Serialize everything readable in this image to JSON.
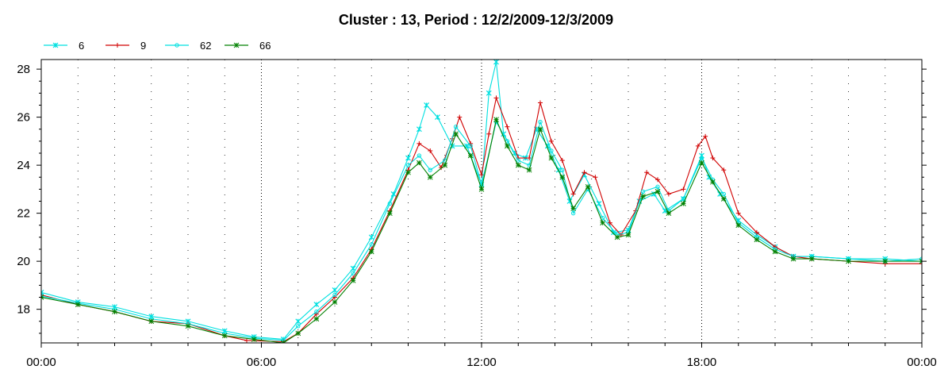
{
  "chart_data": {
    "type": "line",
    "title": "Cluster : 13, Period : 12/2/2009-12/3/2009",
    "xlabel": "",
    "ylabel": "",
    "xlim": [
      0,
      24
    ],
    "ylim": [
      16.6,
      28.4
    ],
    "x_ticks": [
      {
        "value": 0,
        "label": "00:00"
      },
      {
        "value": 6,
        "label": "06:00"
      },
      {
        "value": 12,
        "label": "12:00"
      },
      {
        "value": 18,
        "label": "18:00"
      },
      {
        "value": 24,
        "label": "00:00"
      }
    ],
    "y_ticks": [
      {
        "value": 18,
        "label": "18"
      },
      {
        "value": 20,
        "label": "20"
      },
      {
        "value": 22,
        "label": "22"
      },
      {
        "value": 24,
        "label": "24"
      },
      {
        "value": 26,
        "label": "26"
      },
      {
        "value": 28,
        "label": "28"
      }
    ],
    "grid": "dotted vertical every hour, y ticks on both sides",
    "legend_position": "top-left",
    "series": [
      {
        "name": "6",
        "color": "#00e0e0",
        "marker": "x",
        "points": [
          [
            0,
            18.7
          ],
          [
            1,
            18.3
          ],
          [
            2,
            18.1
          ],
          [
            3,
            17.7
          ],
          [
            4,
            17.5
          ],
          [
            5,
            17.1
          ],
          [
            5.8,
            16.85
          ],
          [
            6.6,
            16.75
          ],
          [
            7,
            17.5
          ],
          [
            7.5,
            18.2
          ],
          [
            8,
            18.8
          ],
          [
            8.5,
            19.7
          ],
          [
            9,
            21
          ],
          [
            9.6,
            22.8
          ],
          [
            10,
            24.3
          ],
          [
            10.3,
            25.5
          ],
          [
            10.5,
            26.5
          ],
          [
            10.8,
            26
          ],
          [
            11.2,
            24.8
          ],
          [
            11.6,
            24.8
          ],
          [
            12,
            23.2
          ],
          [
            12.2,
            27
          ],
          [
            12.4,
            28.3
          ],
          [
            12.6,
            25.3
          ],
          [
            12.9,
            24.5
          ],
          [
            13.2,
            24.3
          ],
          [
            13.5,
            25.5
          ],
          [
            13.8,
            24.8
          ],
          [
            14.1,
            23.8
          ],
          [
            14.4,
            22.5
          ],
          [
            14.8,
            23.6
          ],
          [
            15.2,
            22.4
          ],
          [
            15.6,
            21.2
          ],
          [
            16,
            21.3
          ],
          [
            16.3,
            22.5
          ],
          [
            16.7,
            22.8
          ],
          [
            17,
            22.1
          ],
          [
            17.5,
            22.6
          ],
          [
            18,
            24.4
          ],
          [
            18.2,
            23.5
          ],
          [
            18.5,
            22.8
          ],
          [
            19,
            21.7
          ],
          [
            19.5,
            21.1
          ],
          [
            20,
            20.6
          ],
          [
            20.5,
            20.2
          ],
          [
            21,
            20.2
          ],
          [
            22,
            20.1
          ],
          [
            23,
            20.1
          ],
          [
            24,
            20.0
          ]
        ]
      },
      {
        "name": "9",
        "color": "#d00000",
        "marker": "+",
        "points": [
          [
            0,
            18.6
          ],
          [
            1,
            18.2
          ],
          [
            2,
            17.9
          ],
          [
            3,
            17.5
          ],
          [
            4,
            17.4
          ],
          [
            5,
            16.9
          ],
          [
            5.6,
            16.7
          ],
          [
            6.6,
            16.65
          ],
          [
            7,
            17.0
          ],
          [
            7.5,
            17.8
          ],
          [
            8,
            18.5
          ],
          [
            8.5,
            19.3
          ],
          [
            9,
            20.5
          ],
          [
            9.5,
            22.1
          ],
          [
            10,
            23.8
          ],
          [
            10.3,
            24.9
          ],
          [
            10.6,
            24.6
          ],
          [
            10.9,
            23.9
          ],
          [
            11.2,
            25.1
          ],
          [
            11.4,
            26.0
          ],
          [
            11.7,
            24.9
          ],
          [
            12,
            23.6
          ],
          [
            12.2,
            25.3
          ],
          [
            12.4,
            26.8
          ],
          [
            12.7,
            25.6
          ],
          [
            13,
            24.3
          ],
          [
            13.3,
            24.3
          ],
          [
            13.6,
            26.6
          ],
          [
            13.9,
            25.0
          ],
          [
            14.2,
            24.2
          ],
          [
            14.5,
            22.8
          ],
          [
            14.8,
            23.7
          ],
          [
            15.1,
            23.5
          ],
          [
            15.5,
            21.6
          ],
          [
            15.8,
            21.1
          ],
          [
            16.2,
            22.1
          ],
          [
            16.5,
            23.7
          ],
          [
            16.8,
            23.4
          ],
          [
            17.1,
            22.8
          ],
          [
            17.5,
            23.0
          ],
          [
            17.9,
            24.8
          ],
          [
            18.1,
            25.2
          ],
          [
            18.3,
            24.3
          ],
          [
            18.6,
            23.8
          ],
          [
            19,
            22.0
          ],
          [
            19.5,
            21.2
          ],
          [
            20,
            20.6
          ],
          [
            20.5,
            20.2
          ],
          [
            21,
            20.1
          ],
          [
            22,
            20.0
          ],
          [
            23,
            19.9
          ],
          [
            24,
            19.9
          ]
        ]
      },
      {
        "name": "62",
        "color": "#00e0e0",
        "marker": "o",
        "points": [
          [
            0,
            18.55
          ],
          [
            1,
            18.25
          ],
          [
            2,
            18.0
          ],
          [
            3,
            17.6
          ],
          [
            4,
            17.4
          ],
          [
            5,
            17.0
          ],
          [
            5.8,
            16.8
          ],
          [
            6.6,
            16.7
          ],
          [
            7,
            17.3
          ],
          [
            7.5,
            17.9
          ],
          [
            8,
            18.6
          ],
          [
            8.5,
            19.5
          ],
          [
            9,
            20.7
          ],
          [
            9.5,
            22.4
          ],
          [
            10,
            24.0
          ],
          [
            10.3,
            24.4
          ],
          [
            10.6,
            23.8
          ],
          [
            11,
            24.2
          ],
          [
            11.3,
            25.6
          ],
          [
            11.7,
            24.8
          ],
          [
            12,
            23.2
          ],
          [
            12.4,
            25.8
          ],
          [
            12.7,
            25.0
          ],
          [
            13,
            24.2
          ],
          [
            13.3,
            24.0
          ],
          [
            13.6,
            25.8
          ],
          [
            13.9,
            24.6
          ],
          [
            14.2,
            23.8
          ],
          [
            14.5,
            22.0
          ],
          [
            14.9,
            23.0
          ],
          [
            15.3,
            21.8
          ],
          [
            15.7,
            21.1
          ],
          [
            16,
            21.2
          ],
          [
            16.4,
            22.9
          ],
          [
            16.8,
            23.1
          ],
          [
            17.1,
            22.1
          ],
          [
            17.5,
            22.6
          ],
          [
            18,
            24.3
          ],
          [
            18.3,
            23.4
          ],
          [
            18.6,
            22.8
          ],
          [
            19,
            21.6
          ],
          [
            19.5,
            21.0
          ],
          [
            20,
            20.5
          ],
          [
            20.5,
            20.2
          ],
          [
            21,
            20.2
          ],
          [
            22,
            20.1
          ],
          [
            23,
            20.0
          ],
          [
            24,
            20.1
          ]
        ]
      },
      {
        "name": "66",
        "color": "#008000",
        "marker": "*",
        "points": [
          [
            0,
            18.5
          ],
          [
            1,
            18.2
          ],
          [
            2,
            17.9
          ],
          [
            3,
            17.5
          ],
          [
            4,
            17.3
          ],
          [
            5,
            16.9
          ],
          [
            5.8,
            16.75
          ],
          [
            6.6,
            16.6
          ],
          [
            7,
            17.0
          ],
          [
            7.5,
            17.6
          ],
          [
            8,
            18.3
          ],
          [
            8.5,
            19.2
          ],
          [
            9,
            20.4
          ],
          [
            9.5,
            22.0
          ],
          [
            10,
            23.7
          ],
          [
            10.3,
            24.1
          ],
          [
            10.6,
            23.5
          ],
          [
            11,
            24.0
          ],
          [
            11.3,
            25.3
          ],
          [
            11.7,
            24.4
          ],
          [
            12,
            23.0
          ],
          [
            12.4,
            25.9
          ],
          [
            12.7,
            24.8
          ],
          [
            13,
            24.0
          ],
          [
            13.3,
            23.8
          ],
          [
            13.6,
            25.5
          ],
          [
            13.9,
            24.3
          ],
          [
            14.2,
            23.5
          ],
          [
            14.5,
            22.2
          ],
          [
            14.9,
            23.1
          ],
          [
            15.3,
            21.6
          ],
          [
            15.7,
            21.0
          ],
          [
            16,
            21.1
          ],
          [
            16.4,
            22.7
          ],
          [
            16.8,
            22.9
          ],
          [
            17.1,
            22.0
          ],
          [
            17.5,
            22.4
          ],
          [
            18,
            24.1
          ],
          [
            18.3,
            23.3
          ],
          [
            18.6,
            22.6
          ],
          [
            19,
            21.5
          ],
          [
            19.5,
            20.9
          ],
          [
            20,
            20.4
          ],
          [
            20.5,
            20.1
          ],
          [
            21,
            20.1
          ],
          [
            22,
            20.0
          ],
          [
            23,
            20.0
          ],
          [
            24,
            20.0
          ]
        ]
      }
    ]
  }
}
